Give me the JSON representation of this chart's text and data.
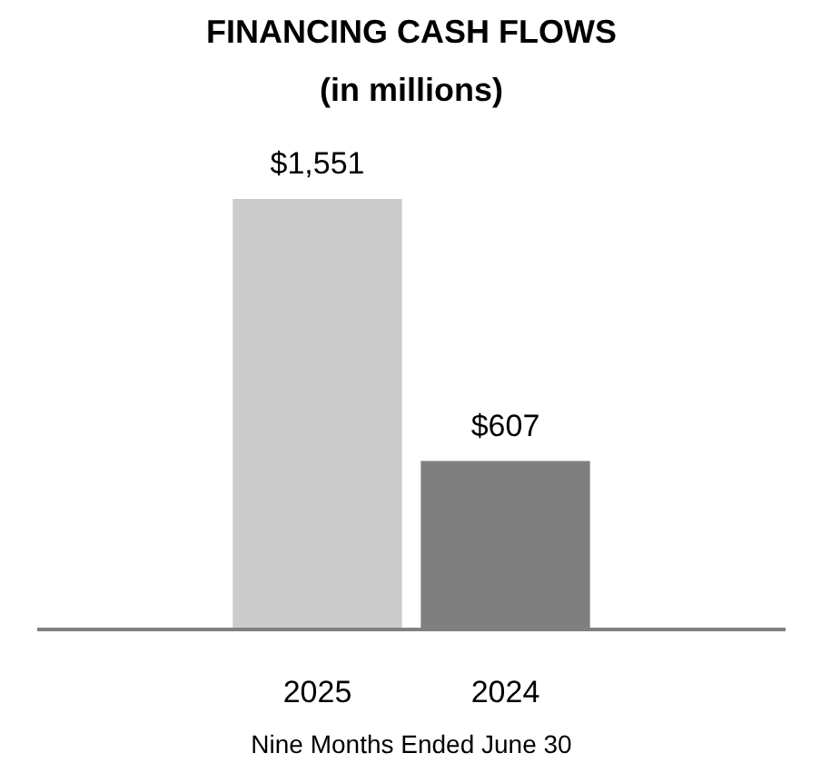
{
  "chart_data": {
    "type": "bar",
    "title": "FINANCING CASH FLOWS",
    "subtitle": "(in millions)",
    "xlabel": "Nine Months Ended June 30",
    "categories": [
      "2025",
      "2024"
    ],
    "values": [
      1551,
      607
    ],
    "colors": [
      "#cccccc",
      "#7f7f7f"
    ],
    "value_labels": [
      "$1,551",
      "$607"
    ],
    "grid": false
  }
}
